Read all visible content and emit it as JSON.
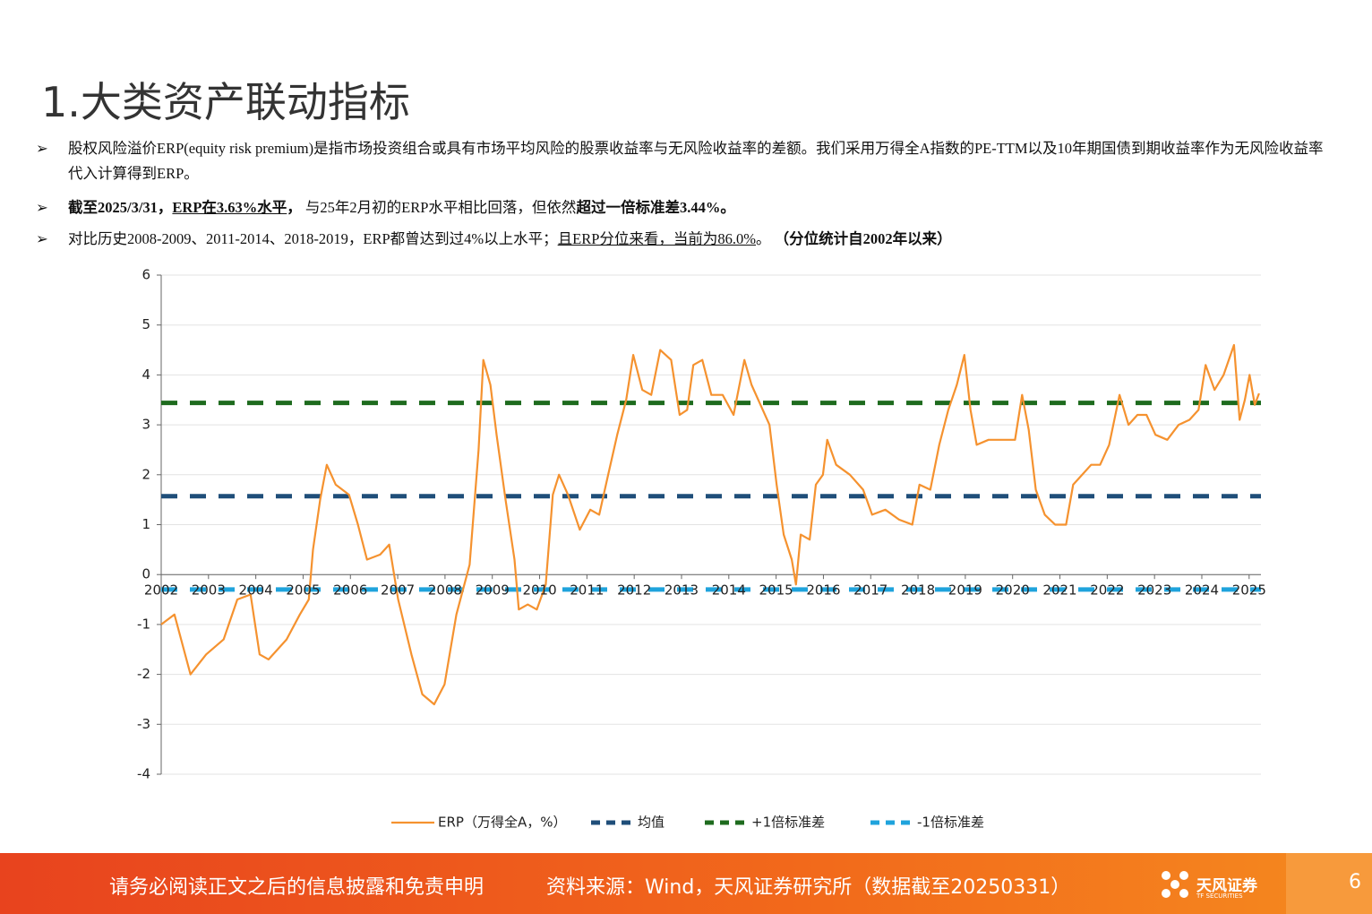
{
  "header": {
    "title": "1.大类资产联动指标"
  },
  "bullets": [
    [
      {
        "text": "股权风险溢价ERP(equity  risk premium)是指市场投资组合或具有市场平均风险的股票收益率与无风险收益率的差额。我们采用万得全A指数的PE-TTM以及10年期国债到期收益率作为无风险收益率代入计算得到ERP。"
      }
    ],
    [
      {
        "text": "截至2025/3/31，",
        "bold": true
      },
      {
        "text": "ERP在3.63%水平",
        "bold": true,
        "underline": true
      },
      {
        "text": "， ",
        "bold": true
      },
      {
        "text": "与25年2月初的ERP水平相比回落，但依然"
      },
      {
        "text": "超过一倍标准差3.44%。",
        "bold": true
      }
    ],
    [
      {
        "text": "对比历史2008-2009、2011-2014、2018-2019，ERP都曾达到过4%以上水平；"
      },
      {
        "text": "且ERP分位来看，当前为86.0%",
        "underline": true
      },
      {
        "text": "。   "
      },
      {
        "text": "（分位统计自2002年以来）",
        "bold": true
      }
    ]
  ],
  "chart_data": {
    "type": "line",
    "x": [
      2002.0,
      2002.28,
      2002.62,
      2002.95,
      2003.32,
      2003.61,
      2003.89,
      2004.08,
      2004.27,
      2004.65,
      2004.93,
      2005.12,
      2005.21,
      2005.36,
      2005.5,
      2005.69,
      2005.97,
      2006.16,
      2006.35,
      2006.63,
      2006.82,
      2007.01,
      2007.29,
      2007.52,
      2007.77,
      2007.99,
      2008.24,
      2008.52,
      2008.71,
      2008.81,
      2008.96,
      2009.09,
      2009.28,
      2009.47,
      2009.56,
      2009.75,
      2009.94,
      2010.13,
      2010.28,
      2010.41,
      2010.6,
      2010.85,
      2011.07,
      2011.26,
      2011.45,
      2011.64,
      2011.83,
      2011.98,
      2012.17,
      2012.36,
      2012.55,
      2012.78,
      2012.96,
      2013.12,
      2013.25,
      2013.44,
      2013.63,
      2013.87,
      2014.1,
      2014.33,
      2014.48,
      2014.67,
      2014.86,
      2015.01,
      2015.16,
      2015.33,
      2015.42,
      2015.52,
      2015.71,
      2015.84,
      2015.99,
      2016.08,
      2016.27,
      2016.56,
      2016.84,
      2017.03,
      2017.31,
      2017.6,
      2017.88,
      2018.03,
      2018.26,
      2018.45,
      2018.64,
      2018.82,
      2018.98,
      2019.11,
      2019.24,
      2019.49,
      2019.77,
      2020.05,
      2020.2,
      2020.34,
      2020.49,
      2020.68,
      2020.9,
      2021.13,
      2021.28,
      2021.47,
      2021.66,
      2021.85,
      2022.04,
      2022.26,
      2022.45,
      2022.64,
      2022.83,
      2023.02,
      2023.27,
      2023.51,
      2023.74,
      2023.93,
      2024.08,
      2024.27,
      2024.46,
      2024.68,
      2024.8,
      2024.91,
      2025.01,
      2025.12,
      2025.21
    ],
    "series": [
      {
        "name": "ERP（万得全A，%）",
        "color": "#f5922f",
        "values": [
          -1.0,
          -0.8,
          -2.0,
          -1.6,
          -1.3,
          -0.5,
          -0.4,
          -1.6,
          -1.7,
          -1.3,
          -0.8,
          -0.5,
          0.5,
          1.5,
          2.2,
          1.8,
          1.6,
          1.0,
          0.3,
          0.4,
          0.6,
          -0.5,
          -1.6,
          -2.4,
          -2.6,
          -2.2,
          -0.8,
          0.2,
          2.5,
          4.3,
          3.8,
          2.8,
          1.5,
          0.3,
          -0.7,
          -0.6,
          -0.7,
          -0.2,
          1.6,
          2.0,
          1.6,
          0.9,
          1.3,
          1.2,
          2.0,
          2.8,
          3.5,
          4.4,
          3.7,
          3.6,
          4.5,
          4.3,
          3.2,
          3.3,
          4.2,
          4.3,
          3.6,
          3.6,
          3.2,
          4.3,
          3.8,
          3.4,
          3.0,
          1.8,
          0.8,
          0.3,
          -0.2,
          0.8,
          0.7,
          1.8,
          2.0,
          2.7,
          2.2,
          2.0,
          1.7,
          1.2,
          1.3,
          1.1,
          1.0,
          1.8,
          1.7,
          2.6,
          3.3,
          3.8,
          4.4,
          3.3,
          2.6,
          2.7,
          2.7,
          2.7,
          3.6,
          2.9,
          1.7,
          1.2,
          1.0,
          1.0,
          1.8,
          2.0,
          2.2,
          2.2,
          2.6,
          3.6,
          3.0,
          3.2,
          3.2,
          2.8,
          2.7,
          3.0,
          3.1,
          3.3,
          4.2,
          3.7,
          4.0,
          4.6,
          3.1,
          3.5,
          4.0,
          3.4,
          3.63
        ]
      }
    ],
    "hlines": [
      {
        "name": "均值",
        "value": 1.57,
        "color": "#1f4e79"
      },
      {
        "name": "+1倍标准差",
        "value": 3.44,
        "color": "#1e6b1e"
      },
      {
        "name": "-1倍标准差",
        "value": -0.3,
        "color": "#1fa3dc"
      }
    ],
    "xlim": [
      2002,
      2025.25
    ],
    "xticks": [
      2002,
      2003,
      2004,
      2005,
      2006,
      2007,
      2008,
      2009,
      2010,
      2011,
      2012,
      2013,
      2014,
      2015,
      2016,
      2017,
      2018,
      2019,
      2020,
      2021,
      2022,
      2023,
      2024,
      2025
    ],
    "ylim": [
      -4,
      6
    ],
    "yticks": [
      -4,
      -3,
      -2,
      -1,
      0,
      1,
      2,
      3,
      4,
      5,
      6
    ],
    "grid": true,
    "legend": "bottom"
  },
  "footer": {
    "disclaimer": "请务必阅读正文之后的信息披露和免责申明",
    "source": "资料来源：Wind，天风证券研究所（数据截至20250331）",
    "logo": "天风证券",
    "logo_sub": "TF SECURITIES",
    "page": "6"
  }
}
